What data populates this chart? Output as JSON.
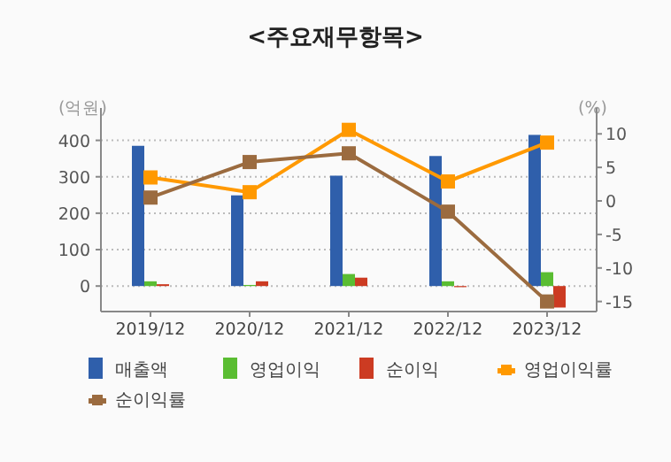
{
  "chart_data": {
    "type": "bar",
    "title": "<주요재무항목>",
    "ylabel": "(억원)",
    "y2label": "(%)",
    "categories": [
      "2019/12",
      "2020/12",
      "2021/12",
      "2022/12",
      "2023/12"
    ],
    "series": [
      {
        "name": "매출액",
        "color": "#2f5fab",
        "values": [
          385,
          249,
          303,
          357,
          415
        ]
      },
      {
        "name": "영업이익",
        "color": "#5abd32",
        "values": [
          13,
          3,
          33,
          13,
          38
        ]
      },
      {
        "name": "순이익",
        "color": "#cc3b22",
        "values": [
          5,
          13,
          23,
          -3,
          -59
        ]
      },
      {
        "name": "영업이익률",
        "type": "line",
        "axis": "y2",
        "marker": "square",
        "color": "#ff9900",
        "values": [
          3.5,
          1.3,
          10.6,
          2.9,
          8.7
        ]
      },
      {
        "name": "순이익률",
        "type": "line",
        "axis": "y2",
        "marker": "square",
        "color": "#9b6b3f",
        "values": [
          0.5,
          5.8,
          7.1,
          -1.6,
          -15.0
        ]
      }
    ],
    "ylim": [
      -70,
      450
    ],
    "yticks": [
      0,
      100,
      200,
      300,
      400
    ],
    "y2lim": [
      -16.5,
      11.75
    ],
    "y2ticks": [
      -15,
      -10,
      -5,
      0,
      5,
      10
    ],
    "grid": "y",
    "legend": "bottom"
  }
}
